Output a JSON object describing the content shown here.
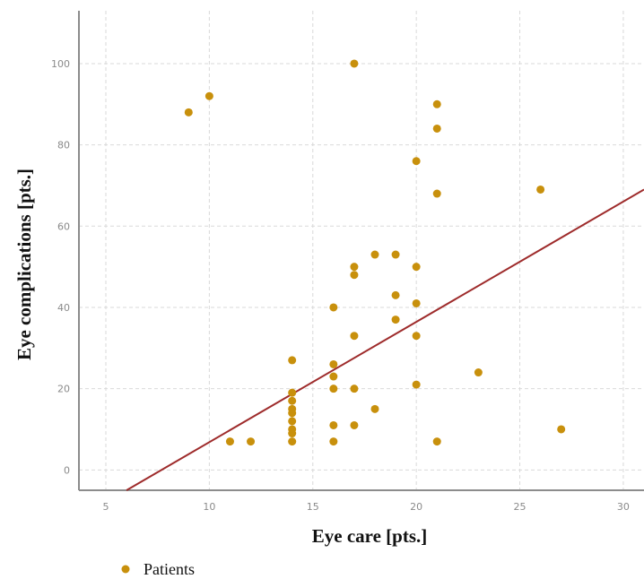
{
  "chart_data": {
    "type": "scatter",
    "xlabel": "Eye care [pts.]",
    "ylabel": "Eye complications [pts.]",
    "xlim": [
      3.7,
      31
    ],
    "ylim": [
      -5,
      113
    ],
    "x_ticks": [
      5,
      10,
      15,
      20,
      25,
      30
    ],
    "y_ticks": [
      0,
      20,
      40,
      60,
      80,
      100
    ],
    "grid": true,
    "legend_position": "bottom-left",
    "series": [
      {
        "name": "Patients",
        "color": "#c8900c",
        "points": [
          [
            9,
            88
          ],
          [
            10,
            92
          ],
          [
            11,
            7
          ],
          [
            12,
            7
          ],
          [
            14,
            27
          ],
          [
            14,
            19
          ],
          [
            14,
            17
          ],
          [
            14,
            15
          ],
          [
            14,
            14
          ],
          [
            14,
            12
          ],
          [
            14,
            10
          ],
          [
            14,
            9
          ],
          [
            14,
            7
          ],
          [
            16,
            40
          ],
          [
            16,
            26
          ],
          [
            16,
            23
          ],
          [
            16,
            20
          ],
          [
            16,
            11
          ],
          [
            16,
            7
          ],
          [
            17,
            100
          ],
          [
            17,
            50
          ],
          [
            17,
            48
          ],
          [
            17,
            33
          ],
          [
            17,
            20
          ],
          [
            17,
            11
          ],
          [
            18,
            53
          ],
          [
            18,
            15
          ],
          [
            19,
            53
          ],
          [
            19,
            43
          ],
          [
            19,
            37
          ],
          [
            20,
            76
          ],
          [
            20,
            50
          ],
          [
            20,
            41
          ],
          [
            20,
            33
          ],
          [
            20,
            21
          ],
          [
            21,
            90
          ],
          [
            21,
            84
          ],
          [
            21,
            68
          ],
          [
            21,
            7
          ],
          [
            23,
            24
          ],
          [
            26,
            69
          ],
          [
            27,
            10
          ]
        ]
      }
    ],
    "trendline": {
      "color": "#9e2b2b",
      "points": [
        [
          6,
          -5
        ],
        [
          31,
          69
        ]
      ]
    }
  }
}
